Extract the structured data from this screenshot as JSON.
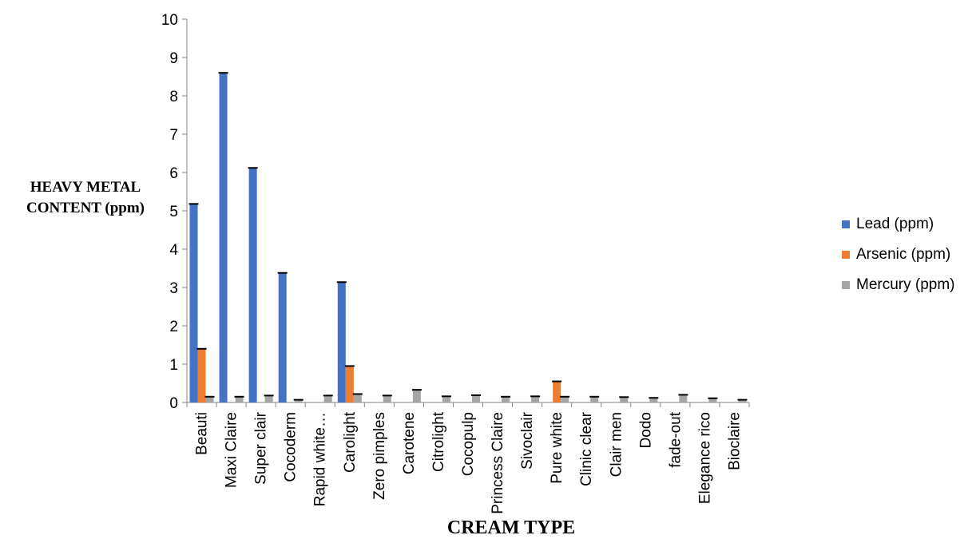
{
  "chart_data": {
    "type": "bar",
    "title": "",
    "xlabel": "CREAM TYPE",
    "ylabel": "HEAVY METAL CONTENT (ppm)",
    "ylim": [
      0,
      10
    ],
    "yticks": [
      0,
      1,
      2,
      3,
      4,
      5,
      6,
      7,
      8,
      9,
      10
    ],
    "grid": false,
    "legend_position": "right",
    "categories": [
      "Beauti",
      "Maxi Claire",
      "Super clair",
      "Cocoderm",
      "Rapid white…",
      "Carolight",
      "Zero pimples",
      "Carotene",
      "Citrolight",
      "Cocopulp",
      "Princess Claire",
      "Sivoclair",
      "Pure white",
      "Clinic clear",
      "Clair men",
      "Dodo",
      "fade-out",
      "Elegance rico",
      "Bioclaire"
    ],
    "series": [
      {
        "name": "Lead (ppm)",
        "color": "#4472C4",
        "values": [
          5.18,
          8.6,
          6.12,
          3.38,
          0,
          3.14,
          0,
          0,
          0,
          0,
          0,
          0,
          0,
          0,
          0,
          0,
          0,
          0,
          0
        ]
      },
      {
        "name": "Arsenic (ppm)",
        "color": "#ED7D31",
        "values": [
          1.4,
          0,
          0,
          0,
          0,
          0.95,
          0,
          0,
          0,
          0,
          0,
          0,
          0.55,
          0,
          0,
          0,
          0,
          0,
          0
        ]
      },
      {
        "name": "Mercury (ppm)",
        "color": "#A5A5A5",
        "values": [
          0.15,
          0.15,
          0.18,
          0.07,
          0.18,
          0.22,
          0.18,
          0.33,
          0.16,
          0.19,
          0.15,
          0.16,
          0.15,
          0.15,
          0.14,
          0.12,
          0.2,
          0.11,
          0.07
        ]
      }
    ]
  }
}
